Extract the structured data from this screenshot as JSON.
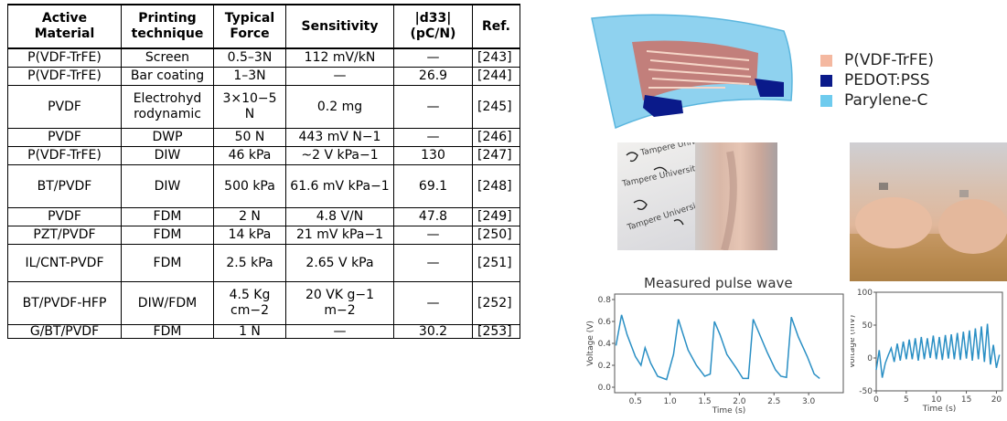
{
  "table": {
    "headers": [
      {
        "line1": "Active",
        "line2": "Material"
      },
      {
        "line1": "Printing",
        "line2": "technique"
      },
      {
        "line1": "Typical",
        "line2": "Force"
      },
      {
        "line1": "Sensitivity",
        "line2": ""
      },
      {
        "line1": "|d33|",
        "line2": "(pC/N)"
      },
      {
        "line1": "Ref.",
        "line2": ""
      }
    ],
    "rows": [
      {
        "material": "P(VDF-TrFE)",
        "technique": "Screen",
        "force": "0.5–3N",
        "sensitivity": "112 mV/kN",
        "d33": "—",
        "ref": "[243]"
      },
      {
        "material": "P(VDF-TrFE)",
        "technique": "Bar coating",
        "force": "1–3N",
        "sensitivity": "—",
        "d33": "26.9",
        "ref": "[244]"
      },
      {
        "material": "PVDF",
        "technique": "Electrohyd rodynamic",
        "force": "3×10−5 N",
        "sensitivity": "0.2 mg",
        "d33": "—",
        "ref": "[245]"
      },
      {
        "material": "PVDF",
        "technique": "DWP",
        "force": "50 N",
        "sensitivity": "443 mV N−1",
        "d33": "—",
        "ref": "[246]"
      },
      {
        "material": "P(VDF-TrFE)",
        "technique": "DIW",
        "force": "46 kPa",
        "sensitivity": "~2 V kPa−1",
        "d33": "130",
        "ref": "[247]"
      },
      {
        "material": "BT/PVDF",
        "technique": "DIW",
        "force": "500 kPa",
        "sensitivity": "61.6 mV kPa−1",
        "d33": "69.1",
        "ref": "[248]"
      },
      {
        "material": "PVDF",
        "technique": "FDM",
        "force": "2 N",
        "sensitivity": "4.8 V/N",
        "d33": "47.8",
        "ref": "[249]"
      },
      {
        "material": "PZT/PVDF",
        "technique": "FDM",
        "force": "14 kPa",
        "sensitivity": "21 mV kPa−1",
        "d33": "—",
        "ref": "[250]"
      },
      {
        "material": "IL/CNT-PVDF",
        "technique": "FDM",
        "force": "2.5 kPa",
        "sensitivity": "2.65 V kPa",
        "d33": "—",
        "ref": "[251]"
      },
      {
        "material": "BT/PVDF-HFP",
        "technique": "DIW/FDM",
        "force": "4.5 Kg cm−2",
        "sensitivity": "20 VK g−1 m−2",
        "d33": "—",
        "ref": "[252]"
      },
      {
        "material": "G/BT/PVDF",
        "technique": "FDM",
        "force": "1 N",
        "sensitivity": "—",
        "d33": "30.2",
        "ref": "[253]"
      }
    ]
  },
  "figure": {
    "legend": [
      {
        "label": "P(VDF-TrFE)",
        "color": "#f4b8a0"
      },
      {
        "label": "PEDOT:PSS",
        "color": "#0a1a8a"
      },
      {
        "label": "Parylene-C",
        "color": "#6ecbee"
      }
    ],
    "photo_text": [
      "Tampere University",
      "Tampere University",
      "Tampere University"
    ],
    "chart1": {
      "title": "Measured pulse wave",
      "xlabel": "Time (s)",
      "ylabel": "Voltage (V)",
      "xticks": [
        "0.5",
        "1.0",
        "1.5",
        "2.0",
        "2.5",
        "3.0"
      ],
      "yticks": [
        "0.0",
        "0.2",
        "0.4",
        "0.6",
        "0.8"
      ]
    },
    "chart2": {
      "xlabel": "Time (s)",
      "ylabel": "Voltage (mV)",
      "xticks": [
        "0",
        "5",
        "10",
        "15",
        "20"
      ],
      "yticks": [
        "-50",
        "0",
        "50",
        "100"
      ]
    }
  },
  "chart_data": [
    {
      "type": "line",
      "title": "Measured pulse wave",
      "xlabel": "Time (s)",
      "ylabel": "Voltage (V)",
      "xlim": [
        0.2,
        3.5
      ],
      "ylim": [
        -0.05,
        0.85
      ],
      "series": [
        {
          "x": [
            0.22,
            0.3,
            0.38,
            0.5,
            0.58,
            0.64,
            0.72,
            0.82,
            0.95,
            1.05,
            1.12,
            1.18,
            1.26,
            1.38,
            1.5,
            1.58,
            1.64,
            1.72,
            1.82,
            1.95,
            2.05,
            2.13,
            2.2,
            2.28,
            2.4,
            2.52,
            2.6,
            2.68,
            2.75,
            2.85,
            2.98,
            3.08,
            3.16
          ],
          "y": [
            0.38,
            0.66,
            0.48,
            0.28,
            0.2,
            0.36,
            0.22,
            0.1,
            0.07,
            0.3,
            0.62,
            0.5,
            0.34,
            0.2,
            0.1,
            0.12,
            0.6,
            0.48,
            0.3,
            0.18,
            0.08,
            0.08,
            0.62,
            0.5,
            0.32,
            0.16,
            0.1,
            0.09,
            0.64,
            0.46,
            0.28,
            0.12,
            0.08
          ]
        }
      ]
    },
    {
      "type": "line",
      "xlabel": "Time (s)",
      "ylabel": "Voltage (mV)",
      "xlim": [
        0,
        21
      ],
      "ylim": [
        -50,
        100
      ],
      "series": [
        {
          "x": [
            0,
            0.5,
            1,
            1.5,
            2,
            2.5,
            3,
            3.5,
            4,
            4.5,
            5,
            5.5,
            6,
            6.5,
            7,
            7.5,
            8,
            8.5,
            9,
            9.5,
            10,
            10.5,
            11,
            11.5,
            12,
            12.5,
            13,
            13.5,
            14,
            14.5,
            15,
            15.5,
            16,
            16.5,
            17,
            17.5,
            18,
            18.5,
            19,
            19.5,
            20,
            20.5
          ],
          "y": [
            -18,
            12,
            -30,
            -8,
            4,
            15,
            -6,
            22,
            -4,
            25,
            -2,
            28,
            -2,
            30,
            -4,
            32,
            -2,
            30,
            0,
            34,
            -2,
            32,
            -3,
            35,
            -1,
            36,
            -2,
            38,
            -3,
            40,
            -1,
            42,
            -4,
            45,
            -2,
            48,
            -6,
            52,
            -10,
            20,
            -15,
            5
          ]
        }
      ]
    }
  ]
}
